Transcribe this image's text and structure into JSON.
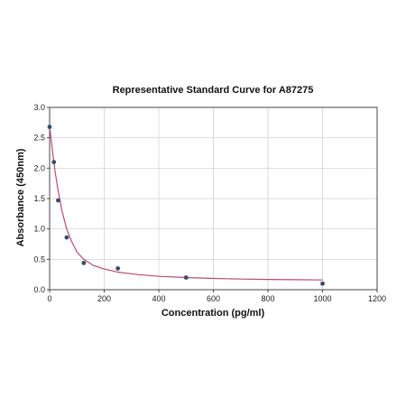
{
  "chart_data": {
    "type": "scatter",
    "title": "Representative Standard Curve for A87275",
    "xlabel": "Concentration (pg/ml)",
    "ylabel": "Absorbance (450nm)",
    "xlim": [
      0,
      1200
    ],
    "ylim": [
      0,
      3.0
    ],
    "xticks": [
      0,
      200,
      400,
      600,
      800,
      1000,
      1200
    ],
    "yticks": [
      0.0,
      0.5,
      1.0,
      1.5,
      2.0,
      2.5,
      3.0
    ],
    "grid": true,
    "points": [
      {
        "x": 0,
        "y": 2.68
      },
      {
        "x": 15.6,
        "y": 2.1
      },
      {
        "x": 31.25,
        "y": 1.47
      },
      {
        "x": 62.5,
        "y": 0.86
      },
      {
        "x": 125,
        "y": 0.44
      },
      {
        "x": 250,
        "y": 0.35
      },
      {
        "x": 500,
        "y": 0.2
      },
      {
        "x": 1000,
        "y": 0.1
      }
    ],
    "fit_curve": [
      {
        "x": 0,
        "y": 2.68
      },
      {
        "x": 10,
        "y": 2.3
      },
      {
        "x": 20,
        "y": 1.95
      },
      {
        "x": 30,
        "y": 1.66
      },
      {
        "x": 45,
        "y": 1.3
      },
      {
        "x": 62.5,
        "y": 1.0
      },
      {
        "x": 80,
        "y": 0.8
      },
      {
        "x": 100,
        "y": 0.62
      },
      {
        "x": 125,
        "y": 0.5
      },
      {
        "x": 160,
        "y": 0.4
      },
      {
        "x": 200,
        "y": 0.34
      },
      {
        "x": 250,
        "y": 0.29
      },
      {
        "x": 320,
        "y": 0.25
      },
      {
        "x": 400,
        "y": 0.22
      },
      {
        "x": 500,
        "y": 0.2
      },
      {
        "x": 600,
        "y": 0.185
      },
      {
        "x": 700,
        "y": 0.175
      },
      {
        "x": 800,
        "y": 0.17
      },
      {
        "x": 900,
        "y": 0.165
      },
      {
        "x": 1000,
        "y": 0.16
      }
    ],
    "colors": {
      "points": "#3a4a6b",
      "curve": "#b84d70",
      "grid": "#cccccc",
      "axis": "#444444"
    }
  }
}
